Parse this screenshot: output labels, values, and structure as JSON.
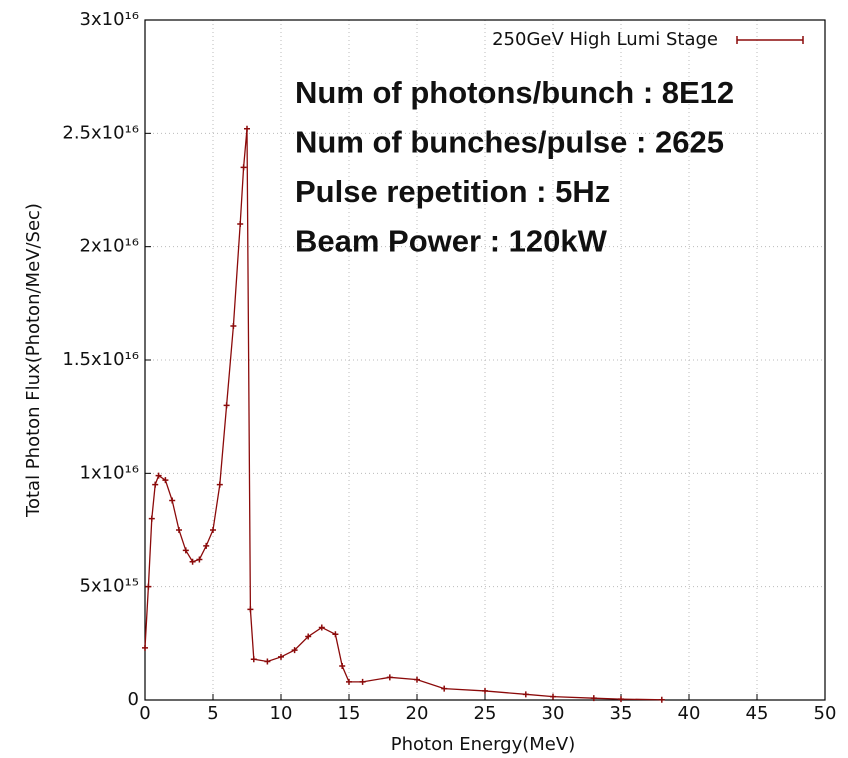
{
  "chart_data": {
    "type": "line",
    "xlabel": "Photon Energy(MeV)",
    "ylabel": "Total Photon Flux(Photon/MeV/Sec)",
    "annotations": [
      "Num of photons/bunch : 8E12",
      "Num of bunches/pulse : 2625",
      "Pulse repetition : 5Hz",
      "Beam Power : 120kW"
    ],
    "x": [
      0,
      0.25,
      0.5,
      0.75,
      1,
      1.5,
      2,
      2.5,
      3,
      3.5,
      4,
      4.5,
      5,
      5.5,
      6,
      6.5,
      7,
      7.25,
      7.5,
      7.75,
      8,
      9,
      10,
      11,
      12,
      13,
      14,
      14.5,
      15,
      16,
      18,
      20,
      22,
      25,
      28,
      30,
      33,
      35,
      38
    ],
    "series": [
      {
        "name": "250GeV High Lumi Stage",
        "color": "#8b0a0a",
        "values": [
          2300000000000000.0,
          5000000000000000.0,
          8000000000000000.0,
          9500000000000000.0,
          9900000000000000.0,
          9700000000000000.0,
          8800000000000000.0,
          7500000000000000.0,
          6600000000000000.0,
          6100000000000000.0,
          6200000000000000.0,
          6800000000000000.0,
          7500000000000000.0,
          9500000000000000.0,
          1.3e+16,
          1.65e+16,
          2.1e+16,
          2.35e+16,
          2.52e+16,
          4000000000000000.0,
          1800000000000000.0,
          1700000000000000.0,
          1900000000000000.0,
          2200000000000000.0,
          2800000000000000.0,
          3200000000000000.0,
          2900000000000000.0,
          1500000000000000.0,
          800000000000000.0,
          800000000000000.0,
          1000000000000000.0,
          900000000000000.0,
          500000000000000.0,
          400000000000000.0,
          250000000000000.0,
          150000000000000.0,
          80000000000000.0,
          40000000000000.0,
          10000000000000.0
        ]
      }
    ],
    "xlim": [
      0,
      50
    ],
    "xticks": [
      0,
      5,
      10,
      15,
      20,
      25,
      30,
      35,
      40,
      45,
      50
    ],
    "ylim": [
      0,
      3e+16
    ],
    "yticks": [
      0,
      {
        "value": 5000000000000000.0,
        "label": "5x10¹⁵"
      },
      {
        "value": 1e+16,
        "label": "1x10¹⁶"
      },
      {
        "value": 1.5e+16,
        "label": "1.5x10¹⁶"
      },
      {
        "value": 2e+16,
        "label": "2x10¹⁶"
      },
      {
        "value": 2.5e+16,
        "label": "2.5x10¹⁶"
      },
      {
        "value": 3e+16,
        "label": "3x10¹⁶"
      }
    ],
    "grid": true,
    "legend": "upper right"
  }
}
